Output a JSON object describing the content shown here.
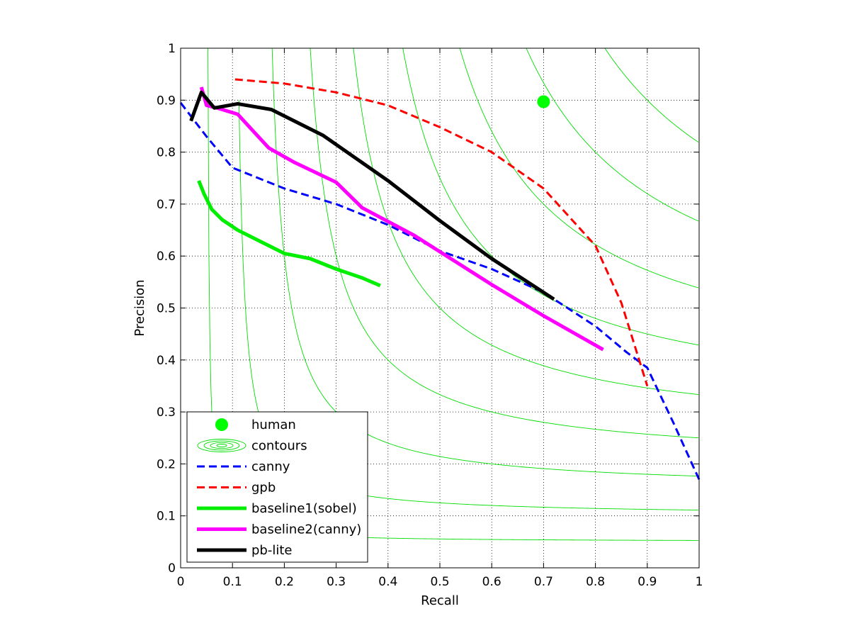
{
  "chart_data": {
    "type": "line",
    "title": "",
    "xlabel": "Recall",
    "ylabel": "Precision",
    "xlim": [
      0,
      1
    ],
    "ylim": [
      0,
      1
    ],
    "grid": true,
    "legend_position": "bottom-left",
    "xticks": [
      "0",
      "0.1",
      "0.2",
      "0.3",
      "0.4",
      "0.5",
      "0.6",
      "0.7",
      "0.8",
      "0.9",
      "1"
    ],
    "yticks": [
      "0",
      "0.1",
      "0.2",
      "0.3",
      "0.4",
      "0.5",
      "0.6",
      "0.7",
      "0.8",
      "0.9",
      "1"
    ],
    "contour_levels": [
      0.1,
      0.2,
      0.3,
      0.4,
      0.5,
      0.6,
      0.7,
      0.8,
      0.9
    ],
    "contour_color": "#00dd00",
    "series": [
      {
        "name": "human",
        "style": "marker",
        "color": "#00ff00",
        "points": [
          [
            0.7,
            0.897
          ]
        ]
      },
      {
        "name": "contours",
        "style": "contour",
        "color": "#00dd00",
        "points": []
      },
      {
        "name": "canny",
        "style": "dashed",
        "color": "#0000ff",
        "points": [
          [
            0.0,
            0.895
          ],
          [
            0.05,
            0.83
          ],
          [
            0.1,
            0.77
          ],
          [
            0.2,
            0.73
          ],
          [
            0.3,
            0.7
          ],
          [
            0.4,
            0.66
          ],
          [
            0.5,
            0.61
          ],
          [
            0.6,
            0.575
          ],
          [
            0.7,
            0.53
          ],
          [
            0.8,
            0.465
          ],
          [
            0.86,
            0.415
          ],
          [
            0.9,
            0.385
          ],
          [
            0.95,
            0.28
          ],
          [
            1.0,
            0.17
          ]
        ]
      },
      {
        "name": "gpb",
        "style": "dashed",
        "color": "#ff0000",
        "points": [
          [
            0.105,
            0.94
          ],
          [
            0.2,
            0.932
          ],
          [
            0.3,
            0.915
          ],
          [
            0.4,
            0.89
          ],
          [
            0.5,
            0.848
          ],
          [
            0.6,
            0.8
          ],
          [
            0.7,
            0.73
          ],
          [
            0.8,
            0.62
          ],
          [
            0.85,
            0.51
          ],
          [
            0.9,
            0.35
          ]
        ]
      },
      {
        "name": "baseline1(sobel)",
        "style": "solid",
        "color": "#00ee00",
        "points": [
          [
            0.035,
            0.745
          ],
          [
            0.045,
            0.72
          ],
          [
            0.06,
            0.69
          ],
          [
            0.08,
            0.67
          ],
          [
            0.11,
            0.65
          ],
          [
            0.15,
            0.63
          ],
          [
            0.2,
            0.605
          ],
          [
            0.25,
            0.595
          ],
          [
            0.3,
            0.575
          ],
          [
            0.35,
            0.558
          ],
          [
            0.385,
            0.543
          ]
        ]
      },
      {
        "name": "baseline2(canny)",
        "style": "solid",
        "color": "#ff00ff",
        "points": [
          [
            0.04,
            0.925
          ],
          [
            0.05,
            0.89
          ],
          [
            0.07,
            0.885
          ],
          [
            0.11,
            0.873
          ],
          [
            0.145,
            0.835
          ],
          [
            0.17,
            0.808
          ],
          [
            0.22,
            0.78
          ],
          [
            0.3,
            0.742
          ],
          [
            0.35,
            0.693
          ],
          [
            0.45,
            0.64
          ],
          [
            0.6,
            0.545
          ],
          [
            0.7,
            0.485
          ],
          [
            0.815,
            0.42
          ]
        ]
      },
      {
        "name": "pb-lite",
        "style": "solid",
        "color": "#000000",
        "points": [
          [
            0.02,
            0.86
          ],
          [
            0.04,
            0.915
          ],
          [
            0.065,
            0.885
          ],
          [
            0.11,
            0.893
          ],
          [
            0.175,
            0.882
          ],
          [
            0.275,
            0.832
          ],
          [
            0.4,
            0.745
          ],
          [
            0.5,
            0.668
          ],
          [
            0.6,
            0.595
          ],
          [
            0.72,
            0.517
          ]
        ]
      }
    ]
  }
}
